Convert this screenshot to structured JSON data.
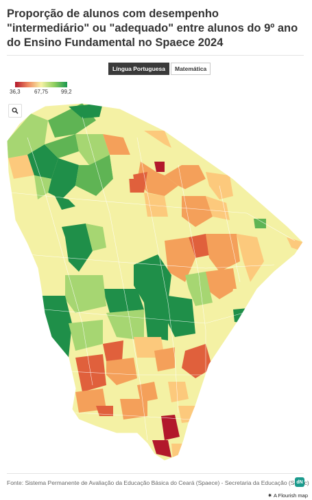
{
  "title": "Proporção de alunos com desempenho \"intermediário\" ou \"adequado\" entre alunos do 9º ano do Ensino Fundamental no Spaece 2024",
  "toggle": {
    "active": "Língua Portuguesa",
    "inactive": "Matemática"
  },
  "legend": {
    "min": "36,3",
    "mid": "67,75",
    "max": "99,2",
    "colors": [
      "#b2182b",
      "#ef8a62",
      "#fddb8d",
      "#f4f3a7",
      "#91cf60",
      "#1a9850"
    ]
  },
  "icons": {
    "zoom": "search-icon",
    "logo": "dn-logo-icon"
  },
  "source": "Fonte: Sistema Permanente de Avaliação da Educação Básica do Ceará (Spaece) - Secretaria da Educação (Seduc)",
  "logo_text": "dN",
  "flourish": "A Flourish map",
  "map_colors": {
    "dark_red": "#b2182b",
    "red": "#e0603c",
    "orange": "#f4a05a",
    "light_orange": "#fcc97c",
    "pale_yellow": "#f4f1a4",
    "light_green": "#a6d672",
    "green": "#5fb454",
    "dark_green": "#1f8f49"
  }
}
